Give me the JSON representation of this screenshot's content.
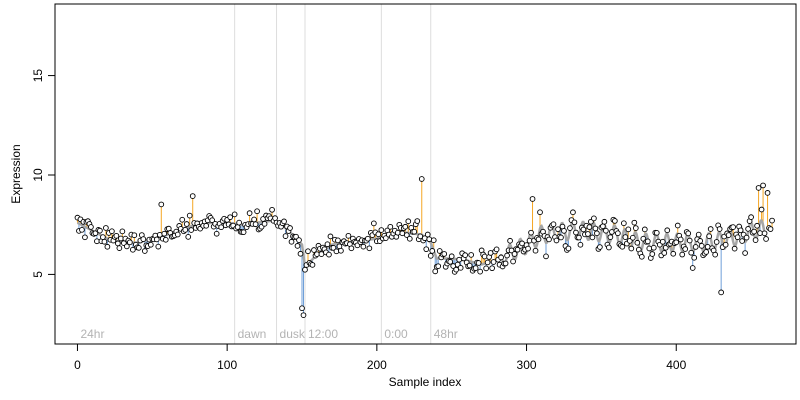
{
  "chart_data": {
    "type": "scatter",
    "xlabel": "Sample index",
    "ylabel": "Expression",
    "xlim": [
      -15,
      480
    ],
    "ylim": [
      1.5,
      18.6
    ],
    "x_ticks": [
      0,
      100,
      200,
      300,
      400
    ],
    "y_ticks": [
      5,
      10,
      15
    ],
    "grid": false,
    "legend": "none",
    "colors": {
      "points_edge": "#000000",
      "above_trend": "#f5a623",
      "below_trend": "#6f9fd8",
      "trend": "#a6a6a6",
      "segment_lines": "#dddddd",
      "annotation_text": "#b3b3b3"
    },
    "segments": [
      {
        "label": "24hr",
        "x_start": 0,
        "x_line": null
      },
      {
        "label": "dawn",
        "x_start": 105,
        "x_line": 105
      },
      {
        "label": "dusk",
        "x_start": 133,
        "x_line": 133
      },
      {
        "label": "12:00",
        "x_start": 152,
        "x_line": 152
      },
      {
        "label": "0:00",
        "x_start": 203,
        "x_line": 203
      },
      {
        "label": "48hr",
        "x_start": 236,
        "x_line": 236
      }
    ],
    "trend_points": [
      [
        0,
        7.6
      ],
      [
        10,
        7.2
      ],
      [
        20,
        6.8
      ],
      [
        30,
        6.6
      ],
      [
        40,
        6.6
      ],
      [
        50,
        6.8
      ],
      [
        60,
        7.0
      ],
      [
        70,
        7.3
      ],
      [
        80,
        7.5
      ],
      [
        90,
        7.6
      ],
      [
        100,
        7.6
      ],
      [
        110,
        7.5
      ],
      [
        120,
        7.6
      ],
      [
        130,
        7.7
      ],
      [
        138,
        7.4
      ],
      [
        145,
        6.9
      ],
      [
        150,
        6.5
      ],
      [
        152,
        5.4
      ],
      [
        155,
        5.6
      ],
      [
        160,
        6.0
      ],
      [
        170,
        6.5
      ],
      [
        180,
        6.6
      ],
      [
        190,
        6.7
      ],
      [
        200,
        6.8
      ],
      [
        210,
        7.0
      ],
      [
        220,
        7.1
      ],
      [
        230,
        7.0
      ],
      [
        236,
        6.6
      ],
      [
        240,
        5.8
      ],
      [
        250,
        5.8
      ],
      [
        260,
        5.7
      ],
      [
        270,
        5.5
      ],
      [
        280,
        5.7
      ],
      [
        290,
        6.1
      ],
      [
        300,
        6.5
      ],
      [
        310,
        7.0
      ],
      [
        320,
        7.1
      ],
      [
        330,
        7.2
      ],
      [
        340,
        7.2
      ],
      [
        350,
        7.1
      ],
      [
        360,
        7.0
      ],
      [
        370,
        6.7
      ],
      [
        380,
        6.6
      ],
      [
        390,
        6.6
      ],
      [
        400,
        6.6
      ],
      [
        410,
        6.6
      ],
      [
        420,
        6.6
      ],
      [
        430,
        6.7
      ],
      [
        440,
        6.9
      ],
      [
        450,
        7.2
      ],
      [
        460,
        7.3
      ]
    ],
    "trend_wiggle": {
      "x_start": 283,
      "x_end": 460,
      "period": 7,
      "amplitude": 0.45
    },
    "point_params": {
      "n": 465,
      "seed": 20240611,
      "noise_sd": 0.55
    }
  }
}
